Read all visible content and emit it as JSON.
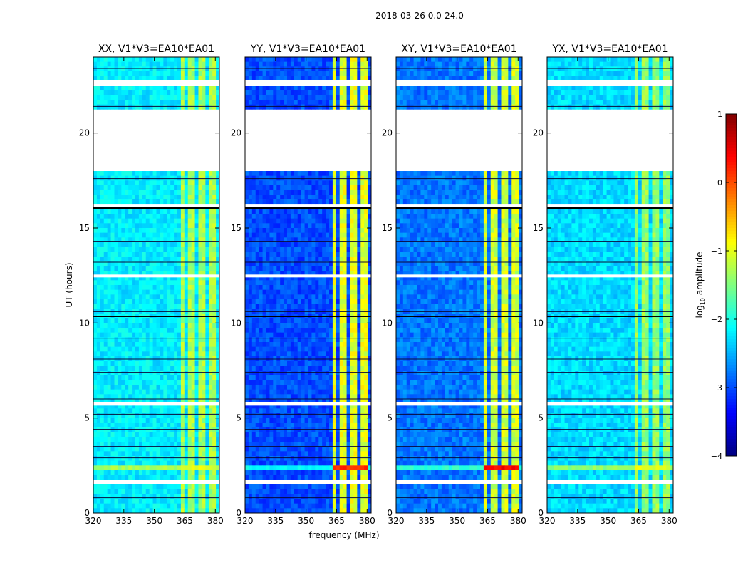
{
  "chart_data": {
    "type": "heatmap",
    "suptitle": "2018-03-26 0.0-24.0",
    "xlabel": "frequency (MHz)",
    "ylabel": "UT (hours)",
    "xlim": [
      320,
      382
    ],
    "ylim": [
      0,
      24
    ],
    "x_ticks": [
      320,
      335,
      350,
      365,
      380
    ],
    "x_tick_labels": [
      "320",
      "335",
      "350",
      "365",
      "380"
    ],
    "y_ticks": [
      0,
      5,
      10,
      15,
      20
    ],
    "y_tick_labels": [
      "0",
      "5",
      "10",
      "15",
      "20"
    ],
    "colorbar": {
      "label_prefix": "log",
      "label_sub": "10",
      "label_suffix": " amplitude",
      "range": [
        -4,
        1
      ],
      "ticks": [
        1,
        0,
        -1,
        -2,
        -3,
        -4
      ],
      "tick_labels": [
        "1",
        "0",
        "−1",
        "−2",
        "−3",
        "−4"
      ],
      "colormap": "jet"
    },
    "data_gaps_hours": [
      [
        18.0,
        21.2
      ],
      [
        16.0,
        16.15
      ],
      [
        22.5,
        22.8
      ],
      [
        12.4,
        12.55
      ],
      [
        5.65,
        5.85
      ],
      [
        1.6,
        1.75
      ]
    ],
    "rfi_band_mhz": [
      363,
      381
    ],
    "panels": [
      {
        "title": "XX, V1*V3=EA10*EA01",
        "background_log_amp": -2.2,
        "rfi_log_amp": -1.3,
        "flare_2_5h_log_amp": -1.0
      },
      {
        "title": "YY, V1*V3=EA10*EA01",
        "background_log_amp": -3.0,
        "rfi_log_amp": -1.0,
        "flare_2_5h_log_amp": 0.2
      },
      {
        "title": "XY, V1*V3=EA10*EA01",
        "background_log_amp": -2.8,
        "rfi_log_amp": -1.1,
        "flare_2_5h_log_amp": 0.4
      },
      {
        "title": "YX, V1*V3=EA10*EA01",
        "background_log_amp": -2.3,
        "rfi_log_amp": -1.4,
        "flare_2_5h_log_amp": -1.0
      }
    ]
  }
}
